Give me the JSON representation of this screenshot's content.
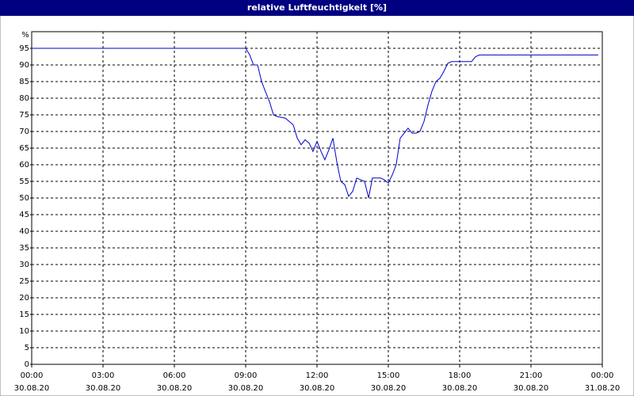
{
  "chart_data": {
    "type": "line",
    "title": "relative Luftfeuchtigkeit [%]",
    "y_unit": "%",
    "x": [
      0,
      9,
      9.17,
      9.33,
      9.5,
      9.67,
      9.83,
      10,
      10.17,
      10.33,
      10.67,
      11,
      11.17,
      11.33,
      11.5,
      11.67,
      11.83,
      12,
      12.17,
      12.33,
      12.5,
      12.67,
      12.83,
      13,
      13.17,
      13.33,
      13.5,
      13.67,
      13.83,
      14,
      14.17,
      14.33,
      14.67,
      14.83,
      15,
      15.17,
      15.33,
      15.5,
      15.67,
      15.83,
      16,
      16.17,
      16.33,
      16.5,
      16.67,
      16.83,
      17,
      17.17,
      17.33,
      17.5,
      17.67,
      18.5,
      18.67,
      18.83,
      23.83
    ],
    "series": [
      {
        "name": "relative Luftfeuchtigkeit",
        "color": "#0000c8",
        "values": [
          95,
          95,
          93,
          90,
          90,
          85,
          82,
          79,
          75,
          74.5,
          74,
          72,
          68,
          66,
          67.5,
          66.5,
          64,
          67,
          64,
          61.5,
          64.5,
          68,
          61,
          55,
          54,
          50.5,
          52,
          56,
          55.5,
          55,
          50,
          56,
          56,
          55.5,
          54.5,
          57,
          60,
          68,
          69.5,
          71,
          69.5,
          69.5,
          70,
          73,
          78,
          82,
          85,
          86,
          88,
          90.5,
          91,
          91,
          92.5,
          93,
          93
        ]
      }
    ],
    "xlim": [
      0,
      24
    ],
    "xticks": [
      {
        "value": 0,
        "label": "00:00",
        "date": "30.08.20"
      },
      {
        "value": 3,
        "label": "03:00",
        "date": "30.08.20"
      },
      {
        "value": 6,
        "label": "06:00",
        "date": "30.08.20"
      },
      {
        "value": 9,
        "label": "09:00",
        "date": "30.08.20"
      },
      {
        "value": 12,
        "label": "12:00",
        "date": "30.08.20"
      },
      {
        "value": 15,
        "label": "15:00",
        "date": "30.08.20"
      },
      {
        "value": 18,
        "label": "18:00",
        "date": "30.08.20"
      },
      {
        "value": 21,
        "label": "21:00",
        "date": "30.08.20"
      },
      {
        "value": 24,
        "label": "00:00",
        "date": "31.08.20"
      }
    ],
    "ylim": [
      0,
      100
    ],
    "yticks": [
      0,
      5,
      10,
      15,
      20,
      25,
      30,
      35,
      40,
      45,
      50,
      55,
      60,
      65,
      70,
      75,
      80,
      85,
      90,
      95
    ],
    "grid": true
  }
}
